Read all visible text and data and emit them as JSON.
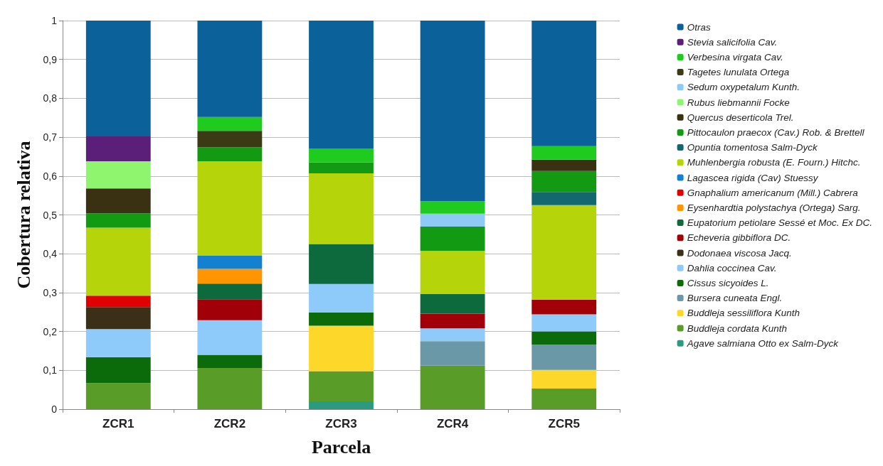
{
  "chart_data": {
    "type": "bar",
    "stacked": true,
    "xlabel": "Parcela",
    "ylabel": "Cobertura relativa",
    "categories": [
      "ZCR1",
      "ZCR2",
      "ZCR3",
      "ZCR4",
      "ZCR5"
    ],
    "series": [
      {
        "name": "Agave salmiana Otto ex Salm-Dyck",
        "color": "#2a9a80",
        "values": [
          null,
          null,
          0.02,
          null,
          null
        ]
      },
      {
        "name": "Buddleja cordata Kunth",
        "color": "#5a9c28",
        "values": [
          0.067,
          0.106,
          0.078,
          0.112,
          0.053
        ]
      },
      {
        "name": "Buddleja sessiliflora Kunth",
        "color": "#fdd82a",
        "values": [
          null,
          null,
          0.117,
          null,
          0.048
        ]
      },
      {
        "name": "Bursera cuneata Engl.",
        "color": "#6b98a6",
        "values": [
          null,
          null,
          null,
          0.063,
          0.065
        ]
      },
      {
        "name": "Cissus sicyoides L.",
        "color": "#0b6b0b",
        "values": [
          0.067,
          0.034,
          0.034,
          null,
          0.034
        ]
      },
      {
        "name": "Dahlia coccinea Cav.",
        "color": "#8fcbfa",
        "values": [
          0.072,
          0.089,
          0.073,
          0.033,
          0.044
        ]
      },
      {
        "name": "Dodonaea viscosa Jacq.",
        "color": "#3b2f18",
        "values": [
          0.057,
          null,
          null,
          null,
          null
        ]
      },
      {
        "name": "Echeveria gibbiflora DC.",
        "color": "#a10008",
        "values": [
          null,
          0.054,
          null,
          0.038,
          0.038
        ]
      },
      {
        "name": "Eupatorium petiolare Sessé et Moc. Ex DC.",
        "color": "#0d6a3c",
        "values": [
          null,
          0.04,
          0.103,
          0.05,
          null
        ]
      },
      {
        "name": "Eysenhardtia polystachya (Ortega) Sarg.",
        "color": "#ff9500",
        "values": [
          null,
          0.038,
          null,
          null,
          null
        ]
      },
      {
        "name": "Gnaphalium americanum (Mill.) Cabrera",
        "color": "#e00000",
        "values": [
          0.029,
          null,
          null,
          null,
          null
        ]
      },
      {
        "name": "Lagascea rigida (Cav) Stuessy",
        "color": "#1380d0",
        "values": [
          null,
          0.034,
          null,
          null,
          null
        ]
      },
      {
        "name": "Muhlenbergia robusta (E. Fourn.) Hitchc.",
        "color": "#b5d40a",
        "values": [
          0.175,
          0.243,
          0.182,
          0.111,
          0.243
        ]
      },
      {
        "name": "Opuntia tomentosa Salm-Dyck",
        "color": "#136870",
        "values": [
          null,
          null,
          null,
          null,
          0.034
        ]
      },
      {
        "name": "Pittocaulon praecox (Cav.) Rob. & Brettell",
        "color": "#129a12",
        "values": [
          0.037,
          0.036,
          0.028,
          0.063,
          0.054
        ]
      },
      {
        "name": "Quercus deserticola Trel.",
        "color": "#3a3012",
        "values": [
          0.064,
          null,
          null,
          null,
          0.029
        ]
      },
      {
        "name": "Rubus liebmannii Focke",
        "color": "#8ff56e",
        "values": [
          0.07,
          null,
          null,
          null,
          null
        ]
      },
      {
        "name": "Sedum oxypetalum Kunth.",
        "color": "#8ecaf5",
        "values": [
          null,
          null,
          null,
          0.033,
          null
        ]
      },
      {
        "name": "Tagetes lunulata Ortega",
        "color": "#3a3a14",
        "values": [
          null,
          0.042,
          null,
          null,
          null
        ]
      },
      {
        "name": "Verbesina virgata Cav.",
        "color": "#1ecb1e",
        "values": [
          null,
          0.036,
          0.036,
          0.032,
          0.035
        ]
      },
      {
        "name": "Stevia salicifolia Cav.",
        "color": "#5b1f7a",
        "values": [
          0.064,
          null,
          null,
          null,
          null
        ]
      },
      {
        "name": "Otras",
        "color": "#0b6199",
        "values": [
          0.298,
          0.248,
          0.329,
          0.465,
          0.323
        ]
      }
    ],
    "ylim": [
      0,
      1
    ],
    "yticks": [
      0,
      {
        "value": 0.1,
        "label": "0,1"
      },
      {
        "value": 0.2,
        "label": "0,2"
      },
      {
        "value": 0.3,
        "label": "0,3"
      },
      {
        "value": 0.4,
        "label": "0,4"
      },
      {
        "value": 0.5,
        "label": "0,5"
      },
      {
        "value": 0.6,
        "label": "0,6"
      },
      {
        "value": 0.7,
        "label": "0,7"
      },
      {
        "value": 0.8,
        "label": "0,8"
      },
      {
        "value": 0.9,
        "label": "0,9"
      },
      1
    ],
    "grid": "y",
    "legend": "right"
  }
}
